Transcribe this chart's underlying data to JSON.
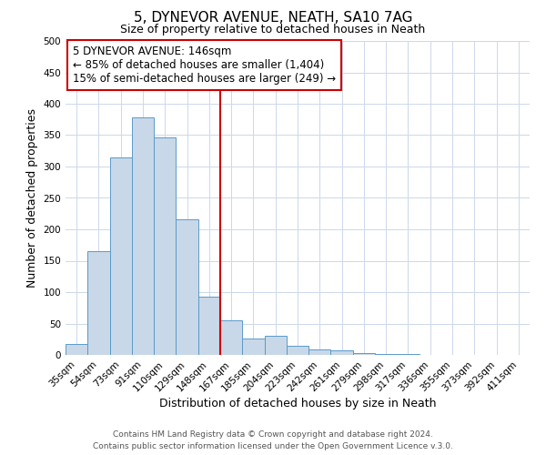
{
  "title": "5, DYNEVOR AVENUE, NEATH, SA10 7AG",
  "subtitle": "Size of property relative to detached houses in Neath",
  "xlabel": "Distribution of detached houses by size in Neath",
  "ylabel": "Number of detached properties",
  "categories": [
    "35sqm",
    "54sqm",
    "73sqm",
    "91sqm",
    "110sqm",
    "129sqm",
    "148sqm",
    "167sqm",
    "185sqm",
    "204sqm",
    "223sqm",
    "242sqm",
    "261sqm",
    "279sqm",
    "298sqm",
    "317sqm",
    "336sqm",
    "355sqm",
    "373sqm",
    "392sqm",
    "411sqm"
  ],
  "bar_values": [
    18,
    165,
    314,
    378,
    346,
    216,
    93,
    55,
    26,
    30,
    15,
    9,
    7,
    3,
    1,
    1,
    0,
    0,
    0,
    0,
    0
  ],
  "bar_color": "#c8d8e8",
  "bar_edge_color": "#5a9ac8",
  "vline_x": 6.5,
  "vline_color": "#cc0000",
  "annotation_line1": "5 DYNEVOR AVENUE: 146sqm",
  "annotation_line2": "← 85% of detached houses are smaller (1,404)",
  "annotation_line3": "15% of semi-detached houses are larger (249) →",
  "box_edge_color": "#cc0000",
  "ylim": [
    0,
    500
  ],
  "yticks": [
    0,
    50,
    100,
    150,
    200,
    250,
    300,
    350,
    400,
    450,
    500
  ],
  "footer_line1": "Contains HM Land Registry data © Crown copyright and database right 2024.",
  "footer_line2": "Contains public sector information licensed under the Open Government Licence v.3.0.",
  "title_fontsize": 11,
  "subtitle_fontsize": 9,
  "axis_label_fontsize": 9,
  "tick_fontsize": 7.5,
  "annotation_fontsize": 8.5,
  "footer_fontsize": 6.5,
  "background_color": "#ffffff",
  "grid_color": "#ccd8ea"
}
